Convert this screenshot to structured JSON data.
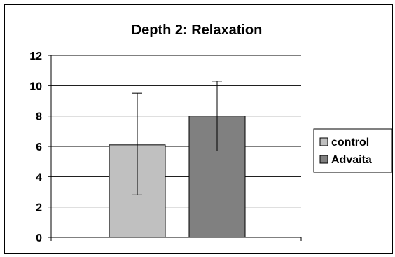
{
  "chart_data": {
    "type": "bar",
    "title": "Depth 2: Relaxation",
    "xlabel": "",
    "ylabel": "",
    "ylim": [
      0,
      12
    ],
    "y_ticks": [
      0,
      2,
      4,
      6,
      8,
      10,
      12
    ],
    "y_tick_labels": [
      "0",
      "2",
      "4",
      "6",
      "8",
      "10",
      "12"
    ],
    "grid": true,
    "legend_position": "right",
    "categories": [
      ""
    ],
    "series": [
      {
        "name": "control",
        "values": [
          6.1
        ],
        "error_low": [
          2.8
        ],
        "error_high": [
          9.5
        ],
        "color": "#c0c0c0"
      },
      {
        "name": "Advaita",
        "values": [
          8.0
        ],
        "error_low": [
          5.7
        ],
        "error_high": [
          10.3
        ],
        "color": "#808080"
      }
    ]
  }
}
